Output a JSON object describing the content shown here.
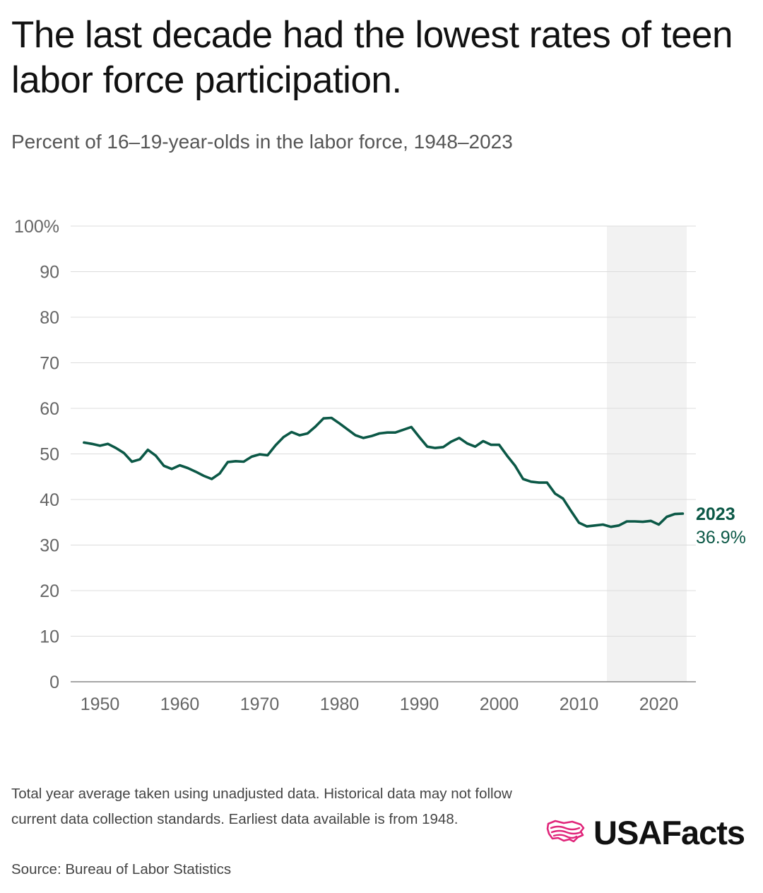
{
  "title": "The last decade had the lowest rates of teen labor force participation.",
  "subtitle": "Percent of 16–19-year-olds in the labor force, 1948–2023",
  "footnote": "Total year average taken using unadjusted data. Historical data may not follow current data collection standards. Earliest data available is from 1948.",
  "source": "Source: Bureau of Labor Statistics",
  "brand": "USAFacts",
  "colors": {
    "line": "#0b5846",
    "shade": "#f2f2f2",
    "grid": "#dcdcdc",
    "tick": "#666666",
    "brand_icon": "#e0257a"
  },
  "chart_data": {
    "type": "line",
    "y_tick_labels": [
      "0",
      "10",
      "20",
      "30",
      "40",
      "50",
      "60",
      "70",
      "80",
      "90",
      "100%"
    ],
    "x_tick_labels": [
      "1950",
      "1960",
      "1970",
      "1980",
      "1990",
      "2000",
      "2010",
      "2020"
    ],
    "ylim": [
      0,
      100
    ],
    "xlim": [
      1947,
      2025
    ],
    "grid": true,
    "shaded_range": [
      2013.5,
      2023.5
    ],
    "end_label": {
      "year": "2023",
      "value": "36.9%"
    },
    "x": [
      1948,
      1949,
      1950,
      1951,
      1952,
      1953,
      1954,
      1955,
      1956,
      1957,
      1958,
      1959,
      1960,
      1961,
      1962,
      1963,
      1964,
      1965,
      1966,
      1967,
      1968,
      1969,
      1970,
      1971,
      1972,
      1973,
      1974,
      1975,
      1976,
      1977,
      1978,
      1979,
      1980,
      1981,
      1982,
      1983,
      1984,
      1985,
      1986,
      1987,
      1988,
      1989,
      1990,
      1991,
      1992,
      1993,
      1994,
      1995,
      1996,
      1997,
      1998,
      1999,
      2000,
      2001,
      2002,
      2003,
      2004,
      2005,
      2006,
      2007,
      2008,
      2009,
      2010,
      2011,
      2012,
      2013,
      2014,
      2015,
      2016,
      2017,
      2018,
      2019,
      2020,
      2021,
      2022,
      2023
    ],
    "values": [
      52.5,
      52.2,
      51.8,
      52.2,
      51.3,
      50.2,
      48.3,
      48.8,
      50.9,
      49.6,
      47.4,
      46.7,
      47.5,
      46.9,
      46.1,
      45.2,
      44.5,
      45.7,
      48.2,
      48.4,
      48.3,
      49.4,
      49.9,
      49.7,
      51.9,
      53.7,
      54.8,
      54.1,
      54.5,
      56.0,
      57.8,
      57.9,
      56.7,
      55.4,
      54.1,
      53.5,
      53.9,
      54.5,
      54.7,
      54.7,
      55.3,
      55.9,
      53.7,
      51.6,
      51.3,
      51.5,
      52.7,
      53.5,
      52.3,
      51.6,
      52.8,
      52.0,
      52.0,
      49.6,
      47.4,
      44.5,
      43.9,
      43.7,
      43.7,
      41.3,
      40.2,
      37.5,
      34.9,
      34.1,
      34.3,
      34.5,
      34.0,
      34.3,
      35.2,
      35.2,
      35.1,
      35.3,
      34.5,
      36.2,
      36.8,
      36.9
    ]
  }
}
